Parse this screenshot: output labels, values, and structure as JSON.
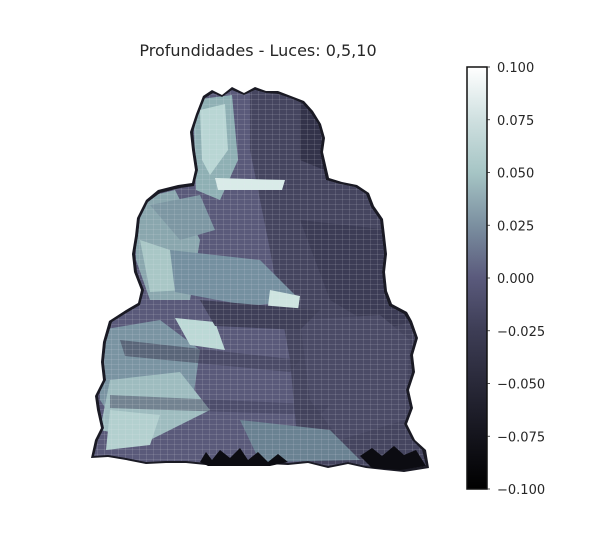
{
  "chart_data": {
    "type": "surface",
    "title": "Profundidades - Luces: 0,5,10",
    "xlabel": "",
    "ylabel": "",
    "grid": false,
    "colormap": "bone",
    "colorbar": {
      "range": [
        -0.1,
        0.1
      ],
      "ticks": [
        -0.1,
        -0.075,
        -0.05,
        -0.025,
        0.0,
        0.025,
        0.05,
        0.075,
        0.1
      ],
      "tick_labels": [
        "−0.100",
        "−0.075",
        "−0.050",
        "−0.025",
        "0.000",
        "0.025",
        "0.050",
        "0.075",
        "0.100"
      ]
    }
  },
  "colors": {
    "bone_low": "#000000",
    "bone_mid_low": "#545474",
    "bone_mid": "#a7c7c7",
    "bone_high": "#ffffff",
    "mesh_line": "#e8e8ee"
  }
}
